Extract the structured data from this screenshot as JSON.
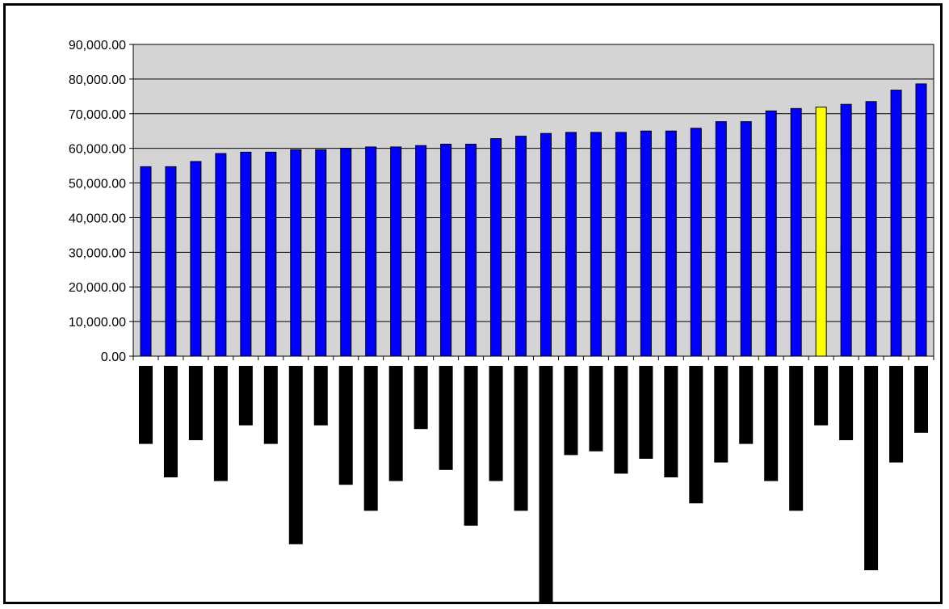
{
  "chart_data": {
    "type": "bar",
    "title": "",
    "xlabel": "",
    "ylabel": "",
    "ylim": [
      0,
      90000
    ],
    "y_ticks": [
      "0.00",
      "10,000.00",
      "20,000.00",
      "30,000.00",
      "40,000.00",
      "50,000.00",
      "60,000.00",
      "70,000.00",
      "80,000.00",
      "90,000.00"
    ],
    "grid": true,
    "legend": "none",
    "plot_background": "#d4d4d4",
    "bar_color": "#0000ff",
    "highlight_color": "#ffff00",
    "highlight_index": 27,
    "series": [
      {
        "values": [
          54700,
          54700,
          56200,
          58500,
          58900,
          58900,
          59600,
          59600,
          60000,
          60400,
          60400,
          60800,
          61200,
          61200,
          62800,
          63500,
          64300,
          64600,
          64600,
          64600,
          65000,
          65000,
          65800,
          67700,
          67700,
          70800,
          71500,
          71900,
          72700,
          73500,
          76800,
          78600
        ]
      },
      {
        "values": [
          21,
          30,
          20,
          31,
          16,
          21,
          48,
          16,
          32,
          39,
          31,
          17,
          28,
          43,
          31,
          39,
          65,
          24,
          23,
          29,
          25,
          30,
          37,
          26,
          21,
          31,
          39,
          16,
          20,
          55,
          26,
          18
        ]
      }
    ]
  }
}
